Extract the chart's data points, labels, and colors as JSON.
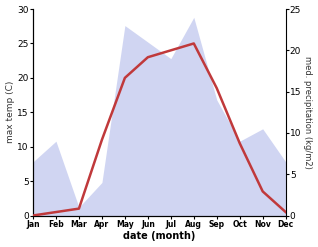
{
  "months": [
    "Jan",
    "Feb",
    "Mar",
    "Apr",
    "May",
    "Jun",
    "Jul",
    "Aug",
    "Sep",
    "Oct",
    "Nov",
    "Dec"
  ],
  "temperature": [
    0.0,
    0.5,
    1.0,
    11.0,
    20.0,
    23.0,
    24.0,
    25.0,
    18.5,
    10.5,
    3.5,
    0.5
  ],
  "precipitation": [
    6.5,
    9.0,
    1.0,
    4.0,
    23.0,
    21.0,
    19.0,
    24.0,
    14.0,
    9.0,
    10.5,
    6.5
  ],
  "temp_ylim": [
    0,
    30
  ],
  "precip_ylim": [
    0,
    25
  ],
  "temp_yticks": [
    0,
    5,
    10,
    15,
    20,
    25,
    30
  ],
  "precip_yticks": [
    0,
    5,
    10,
    15,
    20,
    25
  ],
  "xlabel": "date (month)",
  "ylabel_left": "max temp (C)",
  "ylabel_right": "med. precipitation (kg/m2)",
  "fill_color": "#aab4e8",
  "fill_alpha": 0.55,
  "line_color": "#c0393b",
  "line_width": 1.8,
  "bg_color": "#ffffff"
}
